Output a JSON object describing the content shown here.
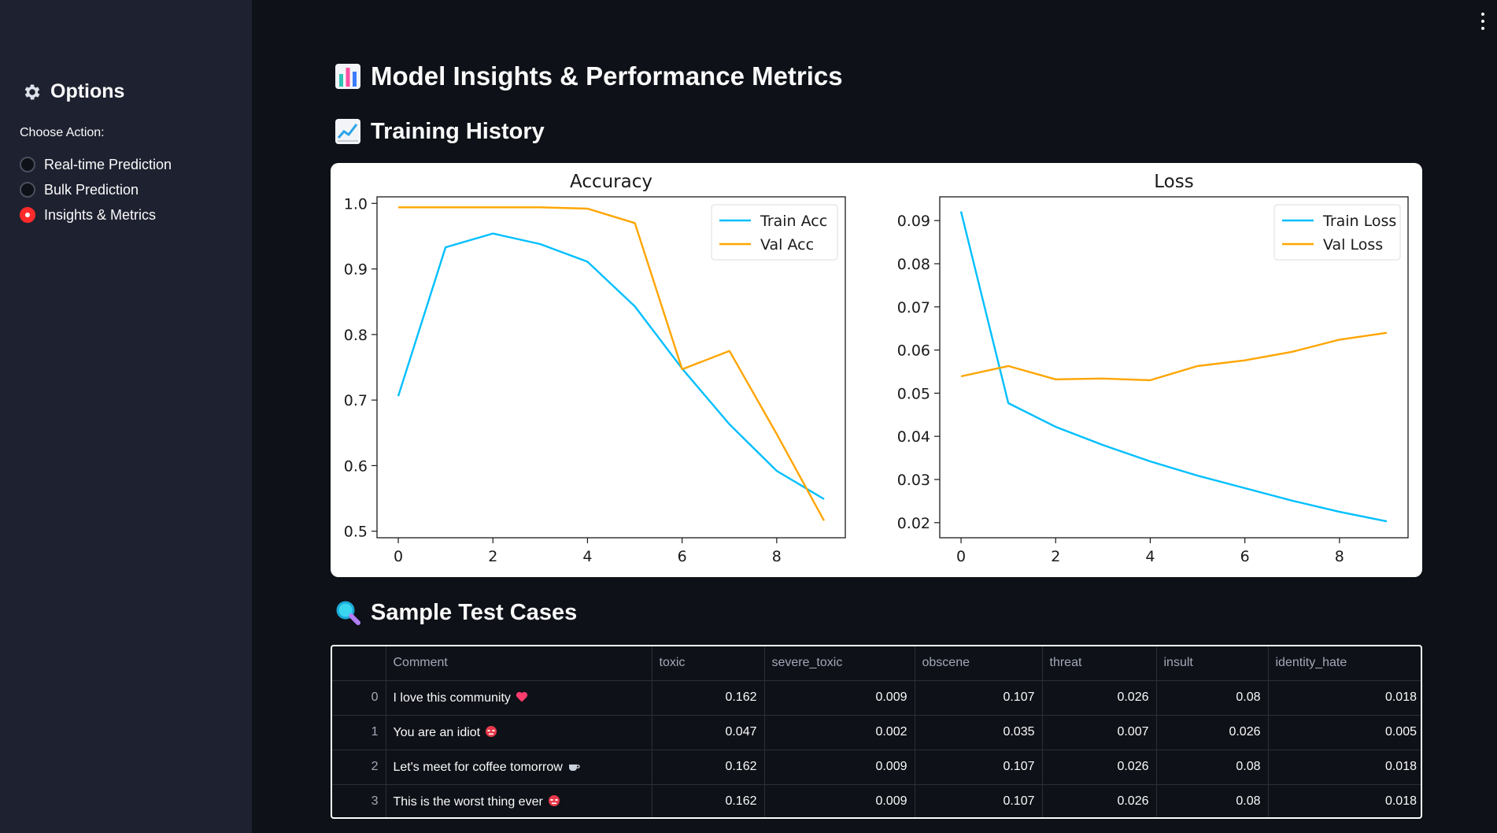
{
  "sidebar": {
    "title": "Options",
    "choose_label": "Choose Action:",
    "options": [
      {
        "label": "Real-time Prediction",
        "checked": false
      },
      {
        "label": "Bulk Prediction",
        "checked": false
      },
      {
        "label": "Insights & Metrics",
        "checked": true
      }
    ],
    "gear_icon": "gear-icon",
    "accent_color": "#ff2b2b"
  },
  "main": {
    "title": "Model Insights & Performance Metrics",
    "title_icon": "bar-chart-icon",
    "training_heading": "Training History",
    "training_icon": "chart-increasing-icon",
    "tests_heading": "Sample Test Cases",
    "tests_icon": "magnifying-glass-icon"
  },
  "chart_data": [
    {
      "type": "line",
      "title": "Accuracy",
      "x": [
        0,
        1,
        2,
        3,
        4,
        5,
        6,
        7,
        8,
        9
      ],
      "xticks": [
        "0",
        "2",
        "4",
        "6",
        "8"
      ],
      "yticks": [
        "0.5",
        "0.6",
        "0.7",
        "0.8",
        "0.9",
        "1.0"
      ],
      "xlim": [
        -0.45,
        9.45
      ],
      "ylim": [
        0.49,
        1.01
      ],
      "legend": "upper right",
      "series": [
        {
          "name": "Train Acc",
          "color": "#00bfff",
          "values": [
            0.706,
            0.933,
            0.954,
            0.938,
            0.911,
            0.843,
            0.748,
            0.663,
            0.592,
            0.549
          ]
        },
        {
          "name": "Val Acc",
          "color": "#ffa500",
          "values": [
            0.994,
            0.994,
            0.994,
            0.994,
            0.992,
            0.97,
            0.747,
            0.775,
            0.648,
            0.516
          ]
        }
      ]
    },
    {
      "type": "line",
      "title": "Loss",
      "x": [
        0,
        1,
        2,
        3,
        4,
        5,
        6,
        7,
        8,
        9
      ],
      "xticks": [
        "0",
        "2",
        "4",
        "6",
        "8"
      ],
      "yticks": [
        "0.02",
        "0.03",
        "0.04",
        "0.05",
        "0.06",
        "0.07",
        "0.08",
        "0.09"
      ],
      "xlim": [
        -0.45,
        9.45
      ],
      "ylim": [
        0.0165,
        0.0955
      ],
      "legend": "upper right",
      "series": [
        {
          "name": "Train Loss",
          "color": "#00bfff",
          "values": [
            0.0921,
            0.0477,
            0.0422,
            0.038,
            0.0342,
            0.0309,
            0.028,
            0.0251,
            0.0225,
            0.0203
          ]
        },
        {
          "name": "Val Loss",
          "color": "#ffa500",
          "values": [
            0.0539,
            0.0563,
            0.0532,
            0.0534,
            0.053,
            0.0563,
            0.0576,
            0.0596,
            0.0624,
            0.064
          ]
        }
      ]
    }
  ],
  "table": {
    "columns": [
      "",
      "Comment",
      "toxic",
      "severe_toxic",
      "obscene",
      "threat",
      "insult",
      "identity_hate"
    ],
    "rows": [
      {
        "index": "0",
        "comment": "I love this community",
        "emoji": "heart-icon",
        "toxic": "0.162",
        "severe_toxic": "0.009",
        "obscene": "0.107",
        "threat": "0.026",
        "insult": "0.08",
        "identity_hate": "0.018"
      },
      {
        "index": "1",
        "comment": "You are an idiot",
        "emoji": "angry-face-icon",
        "toxic": "0.047",
        "severe_toxic": "0.002",
        "obscene": "0.035",
        "threat": "0.007",
        "insult": "0.026",
        "identity_hate": "0.005"
      },
      {
        "index": "2",
        "comment": "Let's meet for coffee tomorrow",
        "emoji": "coffee-icon",
        "toxic": "0.162",
        "severe_toxic": "0.009",
        "obscene": "0.107",
        "threat": "0.026",
        "insult": "0.08",
        "identity_hate": "0.018"
      },
      {
        "index": "3",
        "comment": "This is the worst thing ever",
        "emoji": "angry-face-icon",
        "toxic": "0.162",
        "severe_toxic": "0.009",
        "obscene": "0.107",
        "threat": "0.026",
        "insult": "0.08",
        "identity_hate": "0.018"
      }
    ]
  }
}
